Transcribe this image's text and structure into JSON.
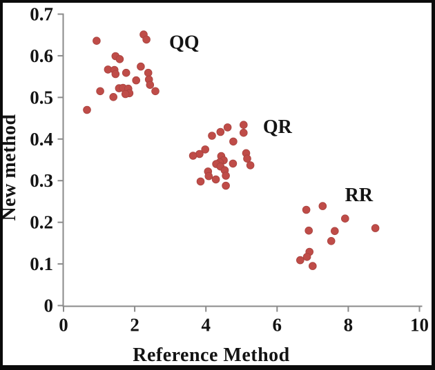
{
  "chart_data": {
    "type": "scatter",
    "title": "",
    "xlabel": "Reference Method",
    "ylabel": "New method",
    "xlim": [
      0,
      10
    ],
    "ylim": [
      0,
      0.7
    ],
    "x_ticks": [
      0,
      2,
      4,
      6,
      8,
      10
    ],
    "x_tick_labels": [
      "0",
      "2",
      "4",
      "6",
      "8",
      "10"
    ],
    "y_ticks": [
      0,
      0.1,
      0.2,
      0.3,
      0.4,
      0.5,
      0.6,
      0.7
    ],
    "y_tick_labels": [
      "0",
      "0.1",
      "0.2",
      "0.3",
      "0.4",
      "0.5",
      "0.6",
      "0.7"
    ],
    "grid": false,
    "legend_position": "none",
    "colors": {
      "marker": "#bf4c48",
      "marker_edge": "#a8433f",
      "axis": "#8a8a8a",
      "text": "#141414",
      "frame": "#0b0b0b",
      "background": "#ffffff"
    },
    "series": [
      {
        "name": "QQ",
        "label": "QQ",
        "label_pos": {
          "x": 3.39,
          "y": 0.634
        },
        "points": [
          [
            0.93,
            0.636
          ],
          [
            2.25,
            0.651
          ],
          [
            2.33,
            0.639
          ],
          [
            1.46,
            0.599
          ],
          [
            1.58,
            0.592
          ],
          [
            1.25,
            0.567
          ],
          [
            1.43,
            0.566
          ],
          [
            1.46,
            0.556
          ],
          [
            1.76,
            0.559
          ],
          [
            2.17,
            0.574
          ],
          [
            2.38,
            0.559
          ],
          [
            2.04,
            0.541
          ],
          [
            2.4,
            0.543
          ],
          [
            2.43,
            0.53
          ],
          [
            2.58,
            0.515
          ],
          [
            1.56,
            0.522
          ],
          [
            1.67,
            0.523
          ],
          [
            1.82,
            0.521
          ],
          [
            1.85,
            0.51
          ],
          [
            1.74,
            0.508
          ],
          [
            1.03,
            0.515
          ],
          [
            1.4,
            0.501
          ],
          [
            0.66,
            0.47
          ]
        ]
      },
      {
        "name": "QR",
        "label": "QR",
        "label_pos": {
          "x": 6.01,
          "y": 0.431
        },
        "points": [
          [
            5.06,
            0.434
          ],
          [
            5.06,
            0.415
          ],
          [
            4.61,
            0.428
          ],
          [
            4.41,
            0.417
          ],
          [
            4.17,
            0.408
          ],
          [
            4.77,
            0.394
          ],
          [
            3.98,
            0.375
          ],
          [
            3.82,
            0.364
          ],
          [
            3.64,
            0.36
          ],
          [
            5.13,
            0.366
          ],
          [
            5.16,
            0.353
          ],
          [
            5.25,
            0.337
          ],
          [
            4.43,
            0.359
          ],
          [
            4.5,
            0.349
          ],
          [
            4.39,
            0.344
          ],
          [
            4.29,
            0.34
          ],
          [
            4.41,
            0.334
          ],
          [
            4.76,
            0.341
          ],
          [
            4.06,
            0.322
          ],
          [
            4.08,
            0.311
          ],
          [
            4.53,
            0.325
          ],
          [
            4.56,
            0.312
          ],
          [
            4.28,
            0.303
          ],
          [
            3.85,
            0.298
          ],
          [
            4.56,
            0.288
          ]
        ]
      },
      {
        "name": "RR",
        "label": "RR",
        "label_pos": {
          "x": 8.3,
          "y": 0.267
        },
        "points": [
          [
            6.82,
            0.23
          ],
          [
            7.28,
            0.239
          ],
          [
            7.91,
            0.209
          ],
          [
            8.76,
            0.186
          ],
          [
            6.89,
            0.18
          ],
          [
            7.62,
            0.179
          ],
          [
            7.52,
            0.155
          ],
          [
            6.91,
            0.129
          ],
          [
            6.84,
            0.117
          ],
          [
            6.65,
            0.109
          ],
          [
            7.0,
            0.095
          ]
        ]
      }
    ]
  }
}
